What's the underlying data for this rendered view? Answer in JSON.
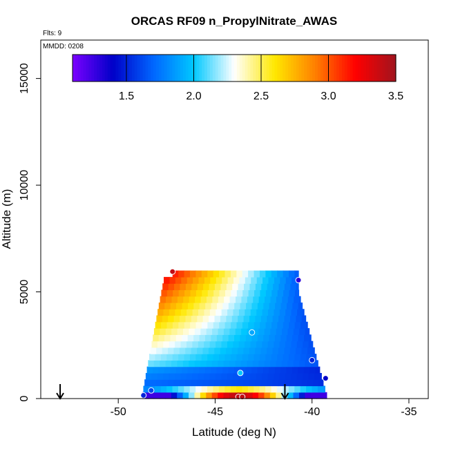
{
  "chart_data": {
    "type": "heatmap",
    "title": "ORCAS RF09 n_PropylNitrate_AWAS",
    "subtitle_flights": "Flts: 9",
    "subtitle_date": "MMDD: 0208",
    "xlabel": "Latitude (deg N)",
    "ylabel": "Altitude (m)",
    "xlim": [
      -54,
      -34
    ],
    "ylim": [
      0,
      16800
    ],
    "x_ticks": [
      -50,
      -45,
      -40,
      -35
    ],
    "y_ticks": [
      0,
      5000,
      10000,
      15000
    ],
    "colorbar": {
      "range": [
        1.1,
        3.5
      ],
      "ticks": [
        1.5,
        2.0,
        2.5,
        3.0,
        3.5
      ],
      "tick_labels": [
        "1.5",
        "2.0",
        "2.5",
        "3.0",
        "3.5"
      ],
      "colors": [
        "#7b00ff",
        "#0000c8",
        "#0066ff",
        "#00c8ff",
        "#ffffff",
        "#ffe800",
        "#ff8000",
        "#ff0000",
        "#a0141e"
      ]
    },
    "field_extent": {
      "lat_min": -48.8,
      "lat_max": -39.2,
      "alt_min": 0,
      "alt_max": 6000
    },
    "samples": [
      {
        "lat": -48.7,
        "alt": 150,
        "value": 1.5
      },
      {
        "lat": -48.3,
        "alt": 380,
        "value": 1.6
      },
      {
        "lat": -47.2,
        "alt": 5950,
        "value": 3.4
      },
      {
        "lat": -43.8,
        "alt": 80,
        "value": 3.4
      },
      {
        "lat": -43.6,
        "alt": 80,
        "value": 3.4
      },
      {
        "lat": -43.7,
        "alt": 1200,
        "value": 2.0
      },
      {
        "lat": -43.1,
        "alt": 3100,
        "value": 1.9
      },
      {
        "lat": -40.7,
        "alt": 5550,
        "value": 1.3
      },
      {
        "lat": -40.0,
        "alt": 1800,
        "value": 1.5
      },
      {
        "lat": -39.3,
        "alt": 950,
        "value": 1.4
      }
    ],
    "arrows_lat": [
      -53.0,
      -41.4
    ],
    "grid": false,
    "legend": "top colorbar"
  }
}
